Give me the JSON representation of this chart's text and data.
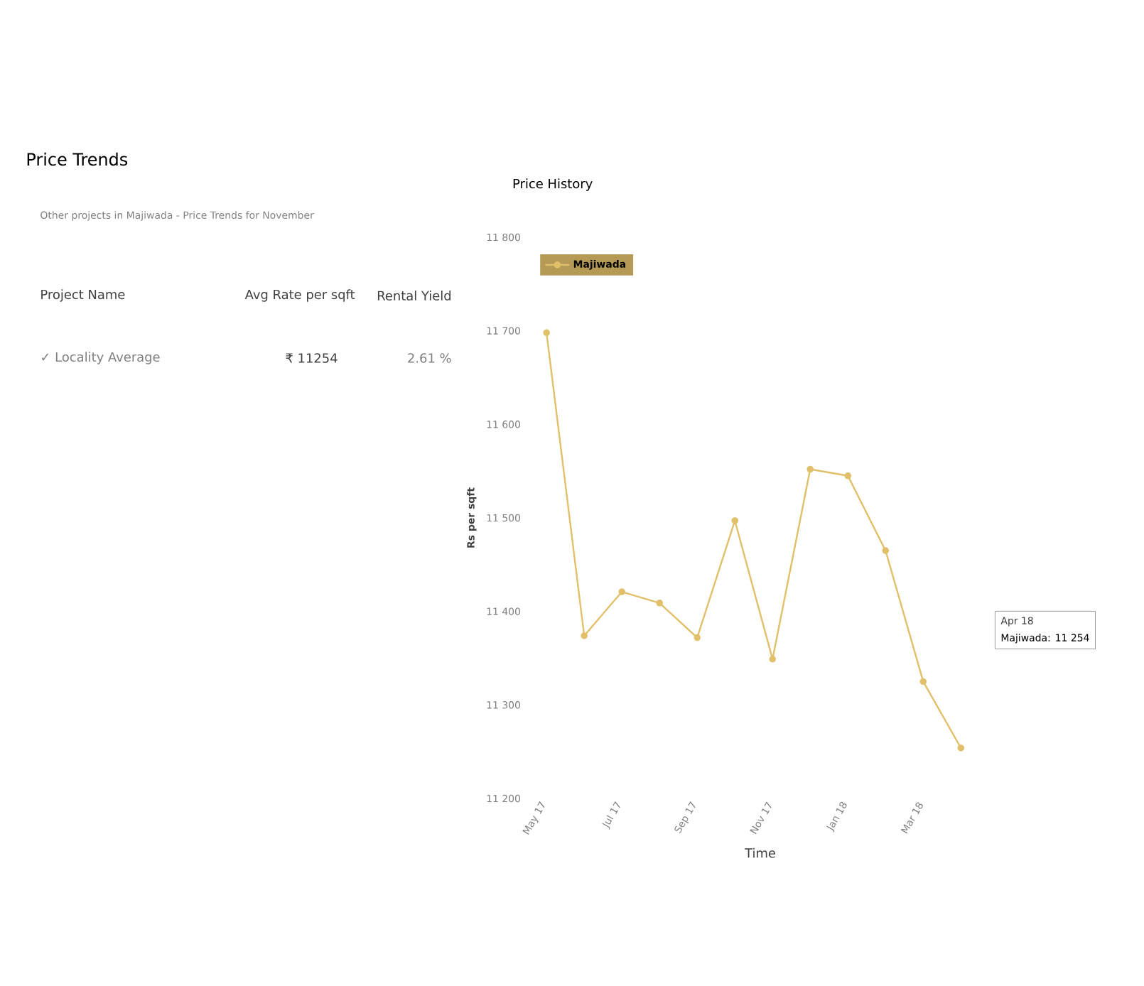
{
  "chart_data": {
    "type": "line",
    "title": "Price History",
    "xlabel": "Time",
    "ylabel": "Rs per sqft",
    "categories": [
      "May 17",
      null,
      "Jul 17",
      null,
      "Sep 17",
      null,
      "Nov 17",
      null,
      "Jan 18",
      null,
      "Mar 18",
      null
    ],
    "series": [
      {
        "name": "Majiwada",
        "color": "#e2c06a",
        "values": [
          11698,
          11374,
          11421,
          11409,
          11372,
          11497,
          11349,
          11552,
          11545,
          11465,
          11325,
          11254
        ]
      }
    ],
    "ylim": [
      11200,
      11800
    ],
    "yticks": [
      {
        "value": 11200,
        "label": "11 200"
      },
      {
        "value": 11300,
        "label": "11 300"
      },
      {
        "value": 11400,
        "label": "11 400"
      },
      {
        "value": 11500,
        "label": "11 500"
      },
      {
        "value": 11600,
        "label": "11 600"
      },
      {
        "value": 11700,
        "label": "11 700"
      },
      {
        "value": 11800,
        "label": "11 800"
      }
    ],
    "marker": "circle",
    "legend": "top left",
    "grid": false,
    "annotations": [
      "Price Trends",
      "Other projects in Majiwada - Price Trends for November",
      "Project Name",
      "Avg Rate per sqft",
      "Rental Yield",
      "✓ Locality Average",
      "₹ 11254",
      "2.61 %",
      "Apr 18",
      "Majiwada: 11 254"
    ]
  }
}
